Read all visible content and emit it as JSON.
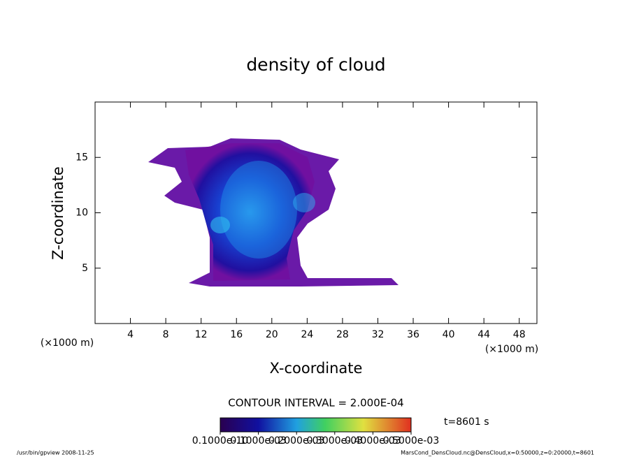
{
  "chart_data": {
    "type": "contour",
    "title": "density of cloud",
    "x_label": "X-coordinate",
    "y_label": "Z-coordinate",
    "x_unit": "(×1000 m)",
    "y_unit": "(×1000 m)",
    "xlim": [
      0,
      50
    ],
    "xticks": [
      4,
      8,
      12,
      16,
      20,
      24,
      28,
      32,
      36,
      40,
      44,
      48
    ],
    "ylim": [
      0,
      20
    ],
    "yticks": [
      5,
      10,
      15
    ],
    "contour_interval": "CONTOUR INTERVAL = 2.000E-04",
    "time_label": "t=8601 s",
    "clim": [
      1e-11,
      0.0005
    ],
    "colorbar_ticks": [
      {
        "value": 1e-11,
        "label": "0.1000e-10"
      },
      {
        "value": 0.0001,
        "label": "0.1000e-03"
      },
      {
        "value": 0.0002,
        "label": "0.2000e-03"
      },
      {
        "value": 0.0003,
        "label": "0.3000e-03"
      },
      {
        "value": 0.0004,
        "label": "0.4000e-03"
      },
      {
        "value": 0.0005,
        "label": "0.5000e-03"
      }
    ],
    "footer_left": "/usr/bin/gpview  2008-11-25",
    "footer_right": "MarsCond_DensCloud.nc@DensCloud,x=0:50000,z=0:20000,t=8601"
  }
}
